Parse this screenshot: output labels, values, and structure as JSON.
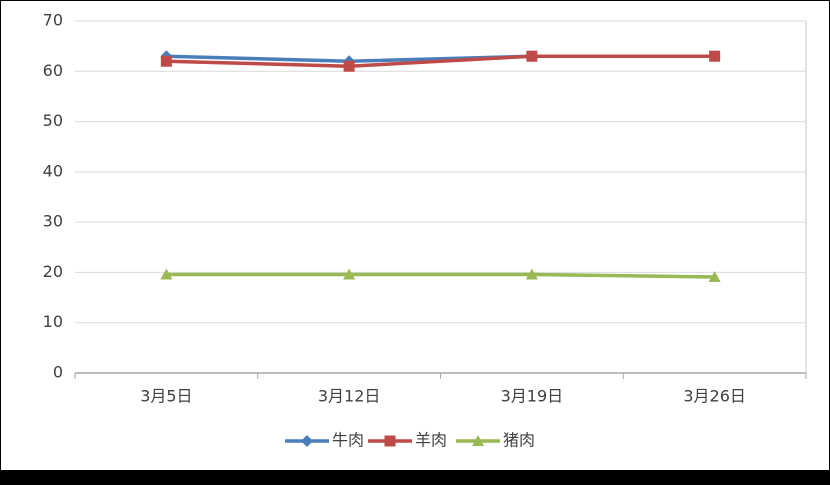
{
  "chart_data": {
    "type": "line",
    "categories": [
      "3月5日",
      "3月12日",
      "3月19日",
      "3月26日"
    ],
    "series": [
      {
        "name": "牛肉",
        "color": "#4a7ebb",
        "marker": "diamond",
        "values": [
          63,
          62,
          63,
          63
        ]
      },
      {
        "name": "羊肉",
        "color": "#be4b48",
        "marker": "square",
        "values": [
          62,
          61,
          63,
          63
        ]
      },
      {
        "name": "猪肉",
        "color": "#98b954",
        "marker": "triangle",
        "values": [
          19.6,
          19.6,
          19.6,
          19.1
        ]
      }
    ],
    "ylim": [
      0,
      70
    ],
    "yticks": [
      0,
      10,
      20,
      30,
      40,
      50,
      60,
      70
    ],
    "grid": true,
    "legend": "bottom"
  }
}
